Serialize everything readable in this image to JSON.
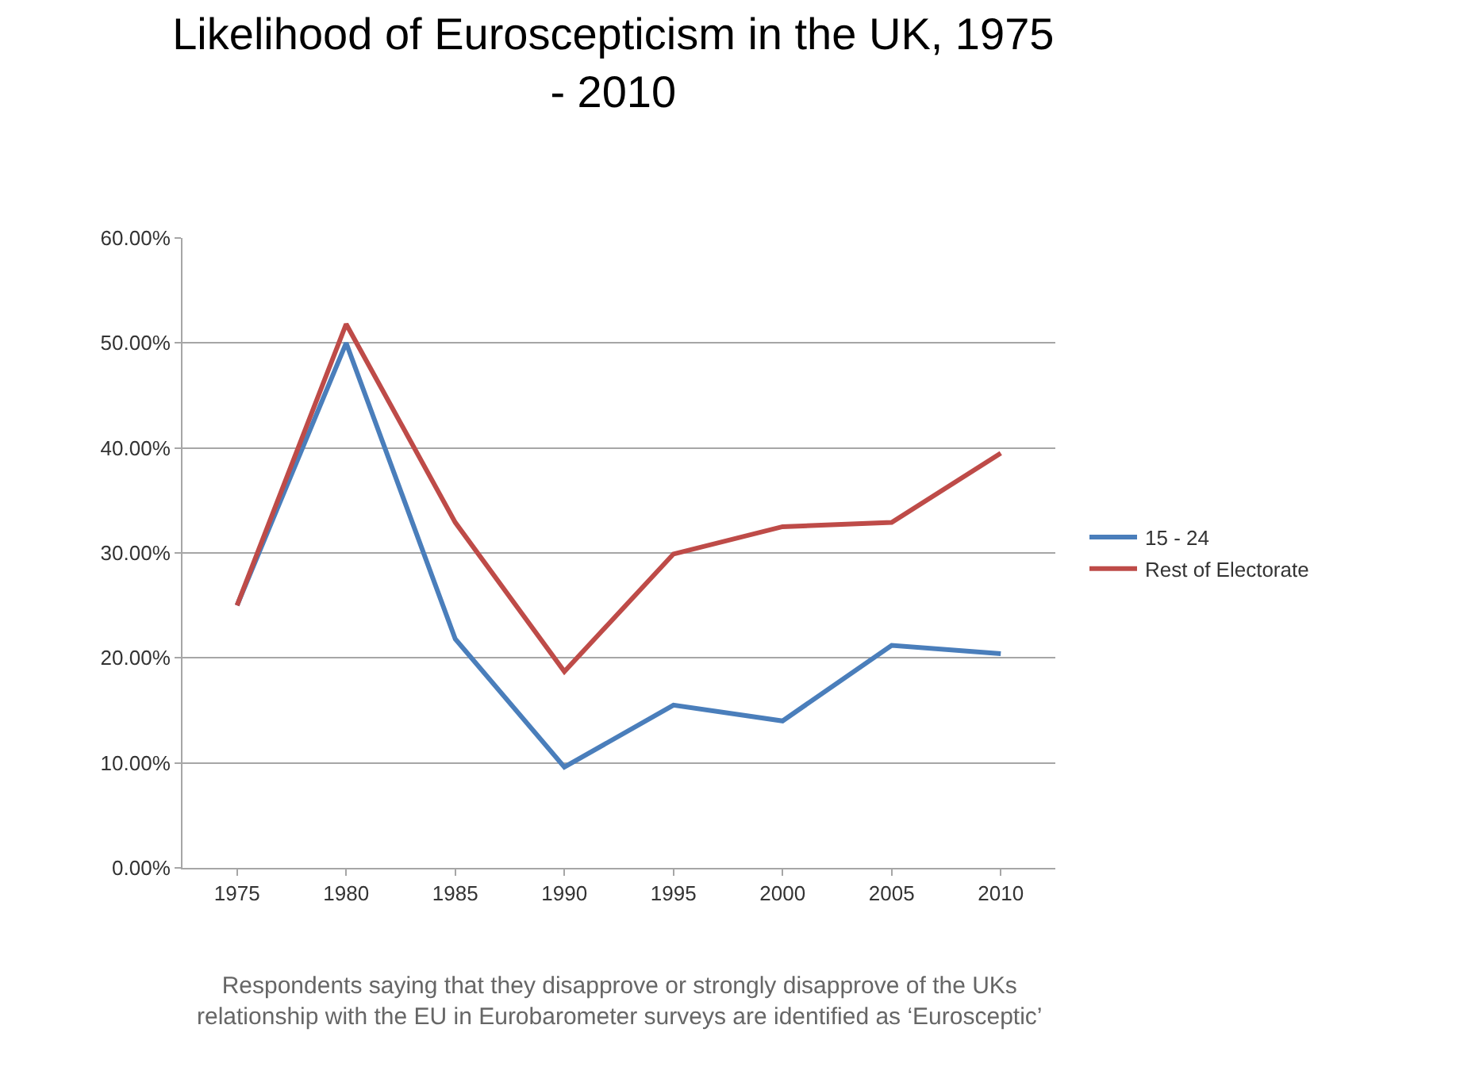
{
  "chart_data": {
    "type": "line",
    "title": "Likelihood of Euroscepticism in the UK, 1975 - 2010",
    "categories": [
      "1975",
      "1980",
      "1985",
      "1990",
      "1995",
      "2000",
      "2005",
      "2010"
    ],
    "series": [
      {
        "name": "15 - 24",
        "color": "#4a7ebb",
        "values": [
          25.0,
          50.0,
          21.8,
          9.6,
          15.5,
          14.0,
          21.2,
          20.4
        ]
      },
      {
        "name": "Rest of Electorate",
        "color": "#be4b48",
        "values": [
          25.0,
          51.8,
          32.9,
          18.7,
          29.9,
          32.5,
          32.9,
          39.5
        ]
      }
    ],
    "ylim": [
      0,
      60
    ],
    "yticks": [
      {
        "value": 0,
        "label": "0.00%"
      },
      {
        "value": 10,
        "label": "10.00%"
      },
      {
        "value": 20,
        "label": "20.00%"
      },
      {
        "value": 30,
        "label": "30.00%"
      },
      {
        "value": 40,
        "label": "40.00%"
      },
      {
        "value": 50,
        "label": "50.00%"
      },
      {
        "value": 60,
        "label": "60.00%"
      }
    ],
    "grid": "y",
    "legend": "right",
    "marker": "none",
    "line_style": "solid",
    "annotations": [
      "Respondents saying that they disapprove or strongly disapprove of the UKs relationship with the EU in Eurobarometer surveys are identified as ‘Eurosceptic’"
    ]
  }
}
